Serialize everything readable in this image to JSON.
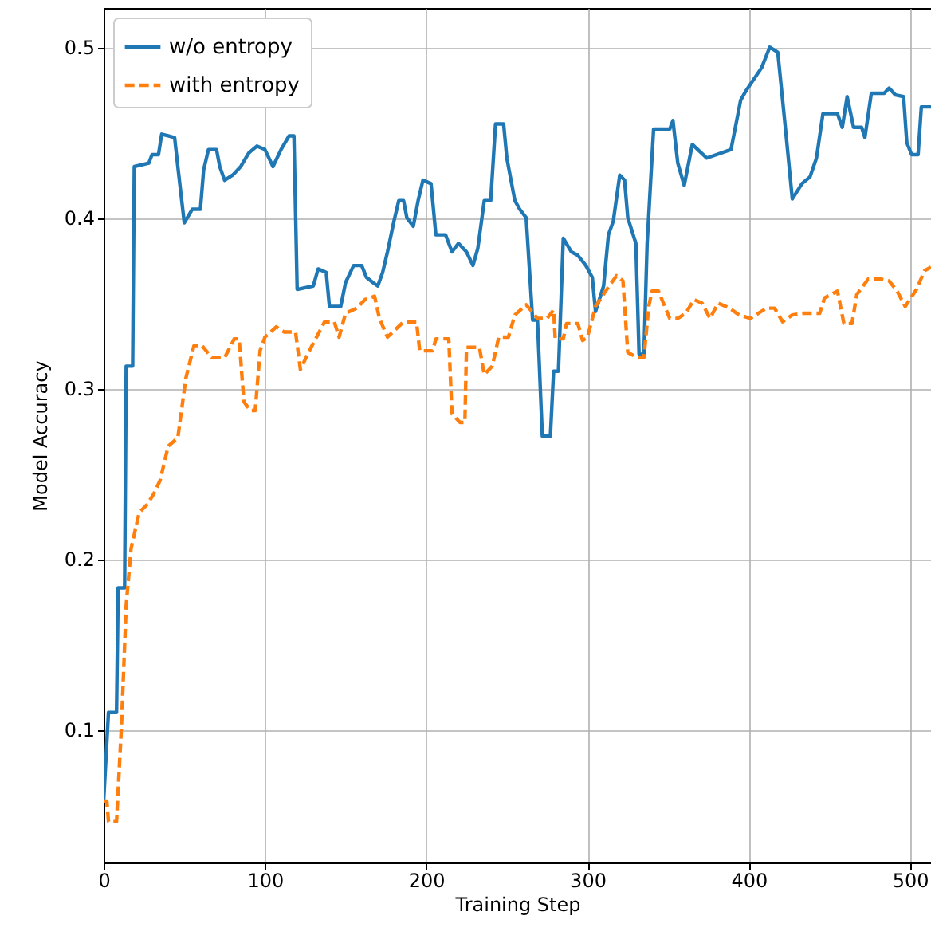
{
  "chart_data": {
    "type": "line",
    "xlabel": "Training Step",
    "ylabel": "Model Accuracy",
    "xlim": [
      0,
      513
    ],
    "ylim": [
      0.022,
      0.523
    ],
    "xticks": [
      0,
      100,
      200,
      300,
      400,
      500
    ],
    "yticks": [
      0.1,
      0.2,
      0.3,
      0.4,
      0.5
    ],
    "grid": true,
    "legend": "top left",
    "series": [
      {
        "name": "w/o entropy",
        "color": "#1f77b4",
        "line_style": "solid",
        "x": [
          0,
          3,
          8,
          9,
          13,
          14,
          18,
          19,
          28,
          30,
          34,
          36,
          40,
          44,
          46,
          50,
          55,
          60,
          62,
          65,
          70,
          72,
          75,
          80,
          85,
          90,
          95,
          100,
          105,
          110,
          115,
          118,
          120,
          130,
          133,
          138,
          140,
          147,
          150,
          155,
          160,
          163,
          167,
          170,
          173,
          176,
          180,
          183,
          186,
          188,
          192,
          195,
          198,
          203,
          206,
          212,
          216,
          220,
          225,
          229,
          232,
          236,
          240,
          243,
          248,
          250,
          255,
          258,
          262,
          266,
          269,
          272,
          277,
          279,
          282,
          285,
          290,
          294,
          299,
          303,
          305,
          310,
          313,
          316,
          320,
          323,
          325,
          330,
          332,
          335,
          337,
          341,
          351,
          353,
          356,
          360,
          365,
          374,
          389,
          395,
          398,
          408,
          413,
          418,
          423,
          427,
          433,
          438,
          442,
          446,
          455,
          458,
          461,
          465,
          470,
          472,
          476,
          484,
          487,
          491,
          496,
          498,
          501,
          505,
          507,
          513
        ],
        "values": [
          0.058,
          0.11,
          0.11,
          0.183,
          0.183,
          0.313,
          0.313,
          0.43,
          0.432,
          0.437,
          0.437,
          0.449,
          0.448,
          0.447,
          0.43,
          0.397,
          0.405,
          0.405,
          0.428,
          0.44,
          0.44,
          0.43,
          0.422,
          0.425,
          0.43,
          0.438,
          0.442,
          0.44,
          0.43,
          0.44,
          0.448,
          0.448,
          0.358,
          0.36,
          0.37,
          0.368,
          0.348,
          0.348,
          0.362,
          0.372,
          0.372,
          0.365,
          0.362,
          0.36,
          0.368,
          0.38,
          0.398,
          0.41,
          0.41,
          0.4,
          0.395,
          0.41,
          0.422,
          0.42,
          0.39,
          0.39,
          0.38,
          0.385,
          0.38,
          0.372,
          0.382,
          0.41,
          0.41,
          0.455,
          0.455,
          0.435,
          0.41,
          0.405,
          0.4,
          0.34,
          0.34,
          0.272,
          0.272,
          0.31,
          0.31,
          0.388,
          0.38,
          0.378,
          0.372,
          0.365,
          0.345,
          0.36,
          0.39,
          0.398,
          0.425,
          0.422,
          0.4,
          0.385,
          0.32,
          0.32,
          0.385,
          0.452,
          0.452,
          0.457,
          0.432,
          0.419,
          0.443,
          0.435,
          0.44,
          0.469,
          0.474,
          0.488,
          0.5,
          0.497,
          0.45,
          0.411,
          0.42,
          0.424,
          0.435,
          0.461,
          0.461,
          0.453,
          0.471,
          0.453,
          0.453,
          0.447,
          0.473,
          0.473,
          0.476,
          0.472,
          0.471,
          0.444,
          0.437,
          0.437,
          0.465,
          0.465
        ]
      },
      {
        "name": "with entropy",
        "color": "#ff7f0e",
        "line_style": "dashed",
        "x": [
          0,
          2,
          3,
          8,
          11,
          14,
          17,
          22,
          27,
          31,
          35,
          40,
          46,
          51,
          56,
          61,
          67,
          75,
          81,
          84,
          87,
          91,
          94,
          97,
          100,
          107,
          112,
          119,
          122,
          127,
          132,
          137,
          143,
          146,
          150,
          157,
          162,
          168,
          171,
          176,
          186,
          194,
          196,
          204,
          206,
          214,
          216,
          221,
          224,
          225,
          233,
          236,
          241,
          245,
          251,
          255,
          262,
          269,
          275,
          279,
          280,
          285,
          287,
          294,
          297,
          300,
          305,
          312,
          318,
          322,
          325,
          331,
          335,
          338,
          340,
          344,
          351,
          356,
          361,
          366,
          371,
          376,
          381,
          388,
          394,
          401,
          411,
          416,
          421,
          427,
          434,
          444,
          447,
          455,
          459,
          464,
          467,
          474,
          482,
          487,
          492,
          497,
          504,
          509,
          513
        ],
        "values": [
          0.058,
          0.058,
          0.046,
          0.046,
          0.101,
          0.173,
          0.206,
          0.227,
          0.232,
          0.238,
          0.246,
          0.266,
          0.271,
          0.306,
          0.325,
          0.325,
          0.318,
          0.318,
          0.329,
          0.329,
          0.292,
          0.287,
          0.287,
          0.322,
          0.33,
          0.336,
          0.333,
          0.333,
          0.311,
          0.321,
          0.33,
          0.339,
          0.339,
          0.33,
          0.344,
          0.347,
          0.352,
          0.354,
          0.341,
          0.33,
          0.339,
          0.339,
          0.322,
          0.322,
          0.329,
          0.329,
          0.285,
          0.28,
          0.28,
          0.324,
          0.324,
          0.308,
          0.313,
          0.33,
          0.33,
          0.343,
          0.349,
          0.341,
          0.341,
          0.346,
          0.329,
          0.329,
          0.338,
          0.338,
          0.328,
          0.33,
          0.348,
          0.358,
          0.366,
          0.363,
          0.321,
          0.318,
          0.318,
          0.348,
          0.357,
          0.357,
          0.341,
          0.341,
          0.344,
          0.352,
          0.35,
          0.341,
          0.35,
          0.347,
          0.343,
          0.341,
          0.347,
          0.347,
          0.339,
          0.343,
          0.344,
          0.344,
          0.353,
          0.357,
          0.338,
          0.338,
          0.355,
          0.364,
          0.364,
          0.363,
          0.357,
          0.348,
          0.358,
          0.369,
          0.371
        ]
      }
    ]
  }
}
